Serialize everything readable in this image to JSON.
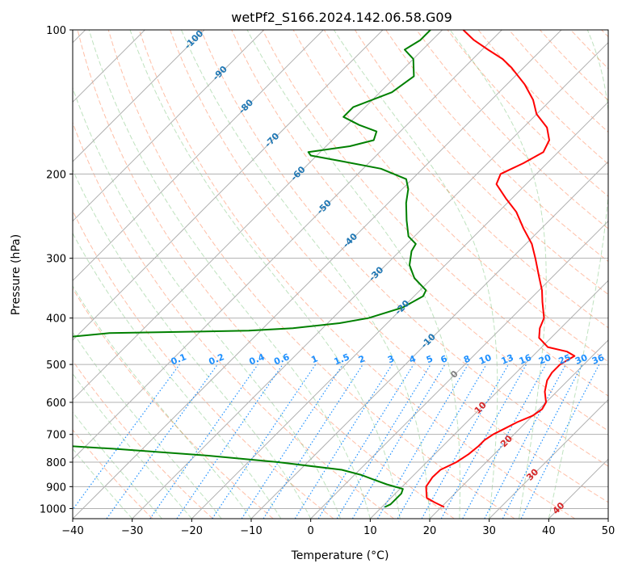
{
  "chart_data": {
    "type": "line",
    "title": "wetPf2_S166.2024.142.06.58.G09",
    "xlabel": "Temperature (°C)",
    "ylabel": "Pressure (hPa)",
    "x_axis": {
      "scale": "skew-T temperature",
      "lim": [
        -40,
        50
      ],
      "ticks": [
        -40,
        -30,
        -20,
        -10,
        0,
        10,
        20,
        30,
        40,
        50
      ]
    },
    "y_axis": {
      "scale": "log pressure (inverted)",
      "lim": [
        1050,
        100
      ],
      "ticks": [
        100,
        200,
        300,
        400,
        500,
        600,
        700,
        800,
        900,
        1000
      ]
    },
    "grid": true,
    "series": [
      {
        "role": "temperature",
        "color": "#ff0000",
        "points": [
          {
            "p": 993,
            "t": 20.5
          },
          {
            "p": 970,
            "t": 18
          },
          {
            "p": 950,
            "t": 16
          },
          {
            "p": 900,
            "t": 14
          },
          {
            "p": 860,
            "t": 13.5
          },
          {
            "p": 830,
            "t": 13.6
          },
          {
            "p": 800,
            "t": 15
          },
          {
            "p": 770,
            "t": 15.7
          },
          {
            "p": 740,
            "t": 16
          },
          {
            "p": 720,
            "t": 16
          },
          {
            "p": 700,
            "t": 16.5
          },
          {
            "p": 680,
            "t": 17.5
          },
          {
            "p": 660,
            "t": 18.5
          },
          {
            "p": 640,
            "t": 20
          },
          {
            "p": 620,
            "t": 20.5
          },
          {
            "p": 600,
            "t": 20
          },
          {
            "p": 570,
            "t": 18
          },
          {
            "p": 540,
            "t": 16.5
          },
          {
            "p": 520,
            "t": 16
          },
          {
            "p": 500,
            "t": 16
          },
          {
            "p": 480,
            "t": 17
          },
          {
            "p": 470,
            "t": 15
          },
          {
            "p": 460,
            "t": 11
          },
          {
            "p": 440,
            "t": 8
          },
          {
            "p": 420,
            "t": 6.5
          },
          {
            "p": 400,
            "t": 5.5
          },
          {
            "p": 370,
            "t": 2.5
          },
          {
            "p": 350,
            "t": 0.5
          },
          {
            "p": 330,
            "t": -2
          },
          {
            "p": 300,
            "t": -6
          },
          {
            "p": 280,
            "t": -9
          },
          {
            "p": 260,
            "t": -13
          },
          {
            "p": 240,
            "t": -17
          },
          {
            "p": 225,
            "t": -21
          },
          {
            "p": 210,
            "t": -25
          },
          {
            "p": 200,
            "t": -26
          },
          {
            "p": 190,
            "t": -24
          },
          {
            "p": 180,
            "t": -22.5
          },
          {
            "p": 170,
            "t": -23.5
          },
          {
            "p": 160,
            "t": -26
          },
          {
            "p": 150,
            "t": -30
          },
          {
            "p": 140,
            "t": -33
          },
          {
            "p": 130,
            "t": -37
          },
          {
            "p": 120,
            "t": -42
          },
          {
            "p": 115,
            "t": -45
          },
          {
            "p": 110,
            "t": -49
          },
          {
            "p": 105,
            "t": -53
          },
          {
            "p": 100,
            "t": -56.5
          }
        ]
      },
      {
        "role": "dewpoint",
        "color": "#008000",
        "points": [
          {
            "p": 993,
            "t": 10.5
          },
          {
            "p": 980,
            "t": 11
          },
          {
            "p": 960,
            "t": 11
          },
          {
            "p": 930,
            "t": 11
          },
          {
            "p": 910,
            "t": 10.5
          },
          {
            "p": 890,
            "t": 7
          },
          {
            "p": 870,
            "t": 4
          },
          {
            "p": 850,
            "t": 1
          },
          {
            "p": 830,
            "t": -3
          },
          {
            "p": 800,
            "t": -15
          },
          {
            "p": 775,
            "t": -28
          },
          {
            "p": 750,
            "t": -45
          },
          {
            "p": 720,
            "t": -70
          },
          {
            "p": 700,
            "t": -90
          },
          {
            "p": 470,
            "t": -90
          },
          {
            "p": 450,
            "t": -80
          },
          {
            "p": 430,
            "t": -65
          },
          {
            "p": 425,
            "t": -42
          },
          {
            "p": 420,
            "t": -35
          },
          {
            "p": 410,
            "t": -28
          },
          {
            "p": 400,
            "t": -24
          },
          {
            "p": 380,
            "t": -20
          },
          {
            "p": 360,
            "t": -18.5
          },
          {
            "p": 350,
            "t": -19
          },
          {
            "p": 330,
            "t": -23
          },
          {
            "p": 310,
            "t": -26
          },
          {
            "p": 290,
            "t": -28
          },
          {
            "p": 280,
            "t": -28.5
          },
          {
            "p": 270,
            "t": -31
          },
          {
            "p": 250,
            "t": -34
          },
          {
            "p": 230,
            "t": -37
          },
          {
            "p": 215,
            "t": -39
          },
          {
            "p": 205,
            "t": -41
          },
          {
            "p": 195,
            "t": -47
          },
          {
            "p": 188,
            "t": -55
          },
          {
            "p": 183,
            "t": -61
          },
          {
            "p": 180,
            "t": -62
          },
          {
            "p": 175,
            "t": -56
          },
          {
            "p": 170,
            "t": -53
          },
          {
            "p": 163,
            "t": -54
          },
          {
            "p": 158,
            "t": -58
          },
          {
            "p": 152,
            "t": -62
          },
          {
            "p": 145,
            "t": -62
          },
          {
            "p": 135,
            "t": -58
          },
          {
            "p": 125,
            "t": -57
          },
          {
            "p": 115,
            "t": -60
          },
          {
            "p": 110,
            "t": -63
          },
          {
            "p": 105,
            "t": -62
          },
          {
            "p": 100,
            "t": -62
          }
        ]
      }
    ],
    "isotherm_labels": [
      {
        "value": "-100",
        "color": "#1f77b4"
      },
      {
        "value": "-90",
        "color": "#1f77b4"
      },
      {
        "value": "-80",
        "color": "#1f77b4"
      },
      {
        "value": "-70",
        "color": "#1f77b4"
      },
      {
        "value": "-60",
        "color": "#1f77b4"
      },
      {
        "value": "-50",
        "color": "#1f77b4"
      },
      {
        "value": "-40",
        "color": "#1f77b4"
      },
      {
        "value": "-30",
        "color": "#1f77b4"
      },
      {
        "value": "-20",
        "color": "#1f77b4"
      },
      {
        "value": "-10",
        "color": "#1f77b4"
      },
      {
        "value": "0",
        "color": "#7f7f7f"
      },
      {
        "value": "10",
        "color": "#d62728"
      },
      {
        "value": "20",
        "color": "#d62728"
      },
      {
        "value": "30",
        "color": "#d62728"
      },
      {
        "value": "40",
        "color": "#d62728"
      }
    ],
    "mixing_ratio_labels": [
      "0.1",
      "0.2",
      "0.4",
      "0.6",
      "1",
      "1.5",
      "2",
      "3",
      "4",
      "5",
      "6",
      "8",
      "10",
      "13",
      "16",
      "20",
      "25",
      "30",
      "36"
    ],
    "colors": {
      "temperature": "#ff0000",
      "dewpoint": "#008000",
      "grid": "#b0b0b0",
      "dry_adiabats": "#ff7f50",
      "moist_adiabats": "#2ca02c",
      "mixing_ratio": "#1e90ff",
      "isotherm_cold": "#1f77b4",
      "isotherm_warm": "#d62728"
    }
  }
}
